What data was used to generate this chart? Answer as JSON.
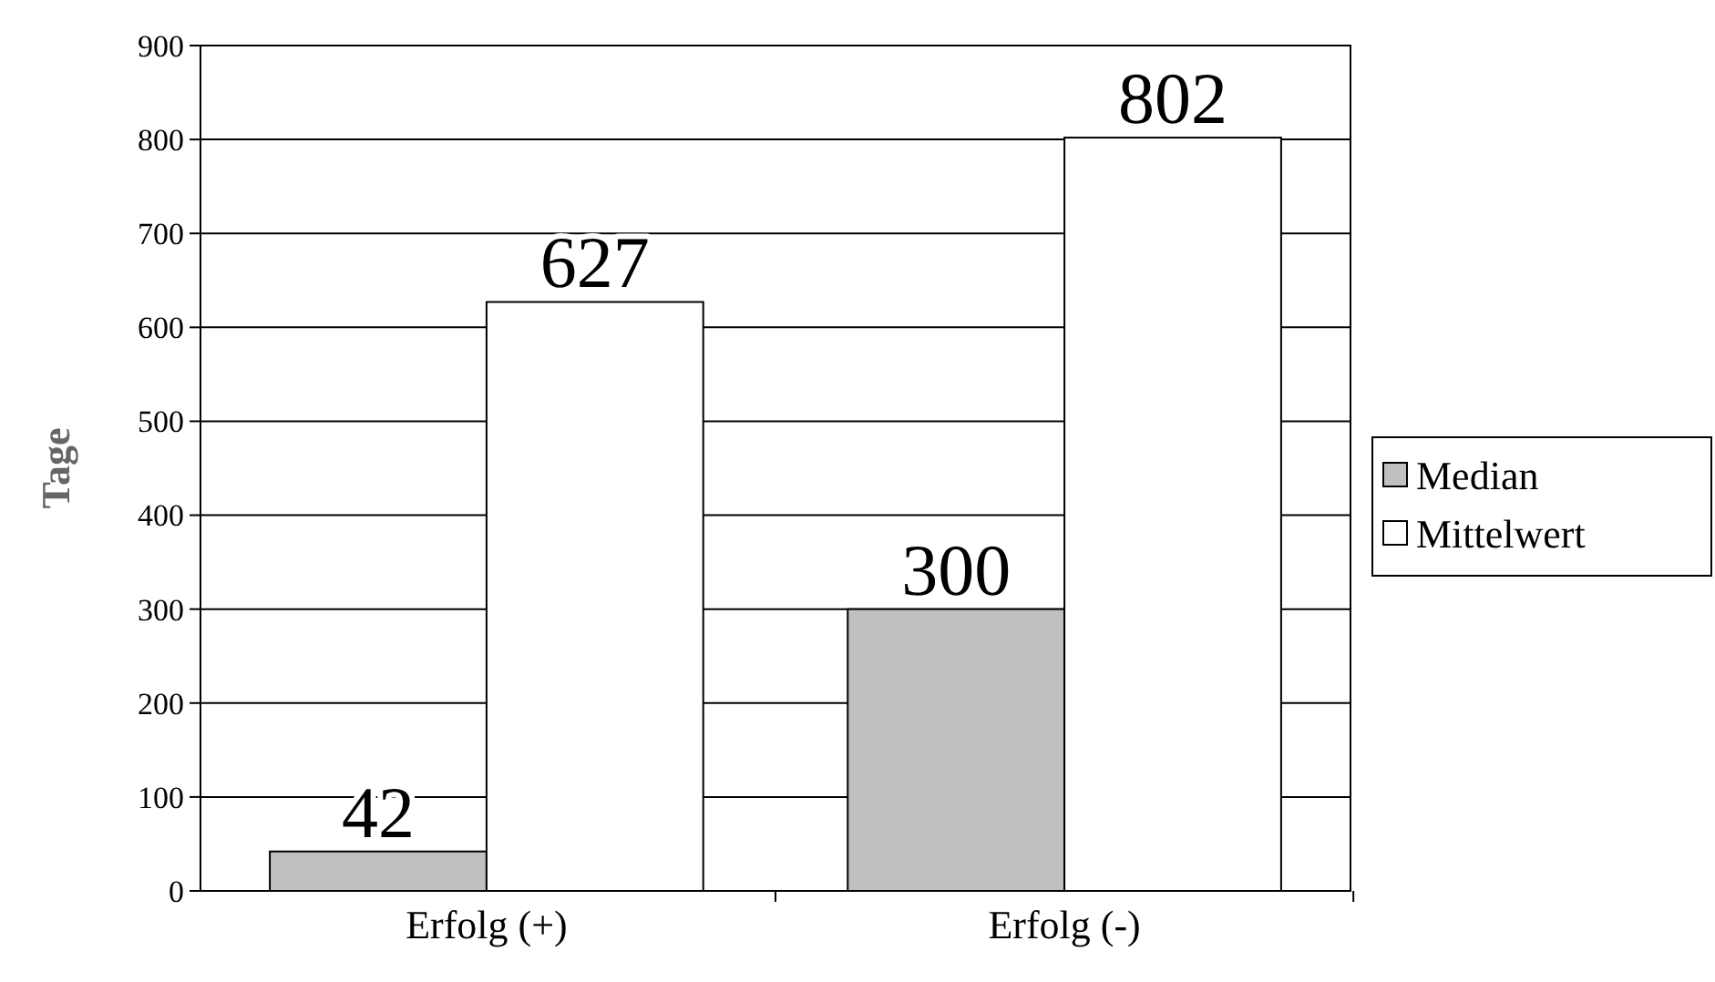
{
  "chart_data": {
    "type": "bar",
    "ylabel": "Tage",
    "categories": [
      "Erfolg (+)",
      "Erfolg (-)"
    ],
    "series": [
      {
        "name": "Median",
        "color": "#c0c0c0",
        "values": [
          42,
          300
        ]
      },
      {
        "name": "Mittelwert",
        "color": "#ffffff",
        "values": [
          627,
          802
        ]
      }
    ],
    "ylim": [
      0,
      900
    ],
    "yticks": [
      0,
      100,
      200,
      300,
      400,
      500,
      600,
      700,
      800,
      900
    ],
    "grid": "y",
    "legend": "right",
    "data_labels": true
  }
}
